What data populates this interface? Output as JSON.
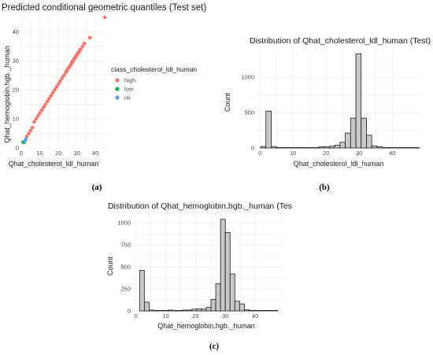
{
  "captions": [
    "(a)",
    "(b)",
    "(c)"
  ],
  "chart_data": [
    {
      "type": "scatter",
      "title": "Predicted conditional geometric quantiles (Test set)",
      "xlabel": "Qhat_cholesterol_ldl_human",
      "ylabel": "Qhat_hemoglobin.hgb._human",
      "xlim": [
        0,
        45
      ],
      "ylim": [
        0,
        45
      ],
      "xticks": [
        0,
        10,
        20,
        30,
        40
      ],
      "yticks": [
        0,
        10,
        20,
        30,
        40
      ],
      "legend": {
        "title": "class_cholesterol_ldl_human",
        "placement": "right",
        "entries": [
          {
            "label": "high",
            "color": "#F8766D"
          },
          {
            "label": "low",
            "color": "#00BA38"
          },
          {
            "label": "ok",
            "color": "#619CFF"
          }
        ]
      },
      "series": [
        {
          "name": "high",
          "color": "#F8766D",
          "points": [
            [
              3,
              4
            ],
            [
              4,
              5
            ],
            [
              5,
              6
            ],
            [
              6,
              7
            ],
            [
              7,
              9
            ],
            [
              8,
              10
            ],
            [
              9,
              11
            ],
            [
              10,
              12
            ],
            [
              11,
              13
            ],
            [
              12,
              14
            ],
            [
              13,
              15
            ],
            [
              14,
              16
            ],
            [
              15,
              17
            ],
            [
              16,
              18
            ],
            [
              17,
              19
            ],
            [
              18,
              20
            ],
            [
              19,
              21
            ],
            [
              20,
              22
            ],
            [
              21,
              23
            ],
            [
              22,
              24
            ],
            [
              23,
              25
            ],
            [
              24,
              26
            ],
            [
              24.5,
              26.5
            ],
            [
              25,
              27
            ],
            [
              25.5,
              27.5
            ],
            [
              26,
              28
            ],
            [
              26.5,
              28.5
            ],
            [
              27,
              29
            ],
            [
              27.3,
              29.4
            ],
            [
              27.6,
              29.8
            ],
            [
              28,
              30
            ],
            [
              28.3,
              30.4
            ],
            [
              28.6,
              30.8
            ],
            [
              29,
              31
            ],
            [
              29.3,
              31.4
            ],
            [
              29.6,
              31.8
            ],
            [
              30,
              32
            ],
            [
              30.3,
              32.4
            ],
            [
              30.6,
              32.8
            ],
            [
              31,
              33
            ],
            [
              31.5,
              33.5
            ],
            [
              32,
              34
            ],
            [
              33,
              35
            ],
            [
              34,
              36
            ],
            [
              37,
              38
            ],
            [
              45,
              45
            ]
          ]
        },
        {
          "name": "low",
          "color": "#00BA38",
          "points": [
            [
              1,
              2
            ],
            [
              1.5,
              2
            ]
          ]
        },
        {
          "name": "ok",
          "color": "#619CFF",
          "points": [
            [
              2,
              2.5
            ],
            [
              2.5,
              3
            ]
          ]
        }
      ]
    },
    {
      "type": "bar",
      "title": "Distribution of Qhat_cholesterol_ldl_human (Test)",
      "xlabel": "Qhat_cholesterol_ldl_human",
      "ylabel": "Count",
      "xlim": [
        -1,
        49
      ],
      "ylim": [
        0,
        1400
      ],
      "xticks": [
        0,
        10,
        20,
        30,
        40
      ],
      "yticks": [
        0,
        500,
        1000
      ],
      "bin_width": 1.6,
      "bins": [
        [
          1,
          20
        ],
        [
          2.6,
          520
        ],
        [
          4.2,
          20
        ],
        [
          5.8,
          5
        ],
        [
          7.4,
          5
        ],
        [
          9,
          5
        ],
        [
          10.6,
          5
        ],
        [
          12.2,
          5
        ],
        [
          13.8,
          5
        ],
        [
          15.4,
          5
        ],
        [
          17,
          5
        ],
        [
          18.6,
          15
        ],
        [
          20.2,
          15
        ],
        [
          21.8,
          25
        ],
        [
          23.4,
          40
        ],
        [
          25,
          80
        ],
        [
          26.6,
          210
        ],
        [
          28.2,
          420
        ],
        [
          29.8,
          1330
        ],
        [
          31.4,
          420
        ],
        [
          33,
          180
        ],
        [
          34.6,
          30
        ],
        [
          36.2,
          15
        ],
        [
          37.8,
          5
        ],
        [
          39.4,
          5
        ],
        [
          41,
          5
        ],
        [
          42.6,
          5
        ],
        [
          44.2,
          5
        ],
        [
          45.8,
          5
        ],
        [
          47.4,
          5
        ]
      ]
    },
    {
      "type": "bar",
      "title": "Distribution of Qhat_hemoglobin.hgb._human (Tes",
      "xlabel": "Qhat_hemoglobin.hgb._human",
      "ylabel": "Count",
      "xlim": [
        -1,
        49
      ],
      "ylim": [
        0,
        1100
      ],
      "xticks": [
        0,
        10,
        20,
        30,
        40
      ],
      "yticks": [
        0,
        250,
        500,
        750,
        1000
      ],
      "bin_width": 1.6,
      "bins": [
        [
          2,
          460
        ],
        [
          3.6,
          100
        ],
        [
          5.2,
          10
        ],
        [
          6.8,
          5
        ],
        [
          8.4,
          5
        ],
        [
          10,
          5
        ],
        [
          11.6,
          10
        ],
        [
          13.2,
          5
        ],
        [
          14.8,
          5
        ],
        [
          16.4,
          10
        ],
        [
          18,
          10
        ],
        [
          19.6,
          20
        ],
        [
          21.2,
          25
        ],
        [
          22.8,
          20
        ],
        [
          24.4,
          40
        ],
        [
          26,
          130
        ],
        [
          27.6,
          310
        ],
        [
          29.2,
          1040
        ],
        [
          30.8,
          890
        ],
        [
          32.4,
          420
        ],
        [
          34,
          110
        ],
        [
          35.6,
          80
        ],
        [
          37.2,
          15
        ],
        [
          38.8,
          5
        ],
        [
          40.4,
          5
        ],
        [
          42,
          5
        ],
        [
          43.6,
          5
        ],
        [
          45.2,
          5
        ],
        [
          46.8,
          5
        ]
      ]
    }
  ]
}
